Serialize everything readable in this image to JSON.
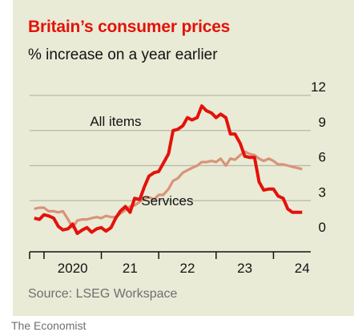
{
  "title": "Britain’s consumer prices",
  "subtitle": "% increase on a year earlier",
  "source": "Source: LSEG Workspace",
  "credit": "The Economist",
  "colors": {
    "background": "#e9ebd6",
    "all_items": "#e3120b",
    "services": "#d9937a",
    "grid": "#b7b9a6",
    "title": "#e3120b"
  },
  "chart_data": {
    "type": "line",
    "title": "Britain’s consumer prices",
    "subtitle": "% increase on a year earlier",
    "x_unit": "year",
    "xlim": [
      2019.75,
      2024.65
    ],
    "ylim": [
      0,
      12
    ],
    "yticks": [
      0,
      3,
      6,
      9,
      12
    ],
    "ytick_labels": [
      "0",
      "3",
      "6",
      "9",
      "12"
    ],
    "xticks": [
      2020,
      2021,
      2022,
      2023,
      2024
    ],
    "xtick_labels": [
      "2020",
      "21",
      "22",
      "23",
      "24"
    ],
    "grid": true,
    "y_axis_position": "right",
    "series": [
      {
        "name": "All items",
        "color": "#e3120b",
        "label_x": 2021.25,
        "label_y": 9.4,
        "x": [
          2019.83,
          2019.92,
          2020.0,
          2020.08,
          2020.17,
          2020.25,
          2020.33,
          2020.42,
          2020.5,
          2020.58,
          2020.67,
          2020.75,
          2020.83,
          2020.92,
          2021.0,
          2021.08,
          2021.17,
          2021.25,
          2021.33,
          2021.42,
          2021.5,
          2021.58,
          2021.67,
          2021.75,
          2021.83,
          2021.92,
          2022.0,
          2022.08,
          2022.17,
          2022.25,
          2022.33,
          2022.42,
          2022.5,
          2022.58,
          2022.67,
          2022.75,
          2022.83,
          2022.92,
          2023.0,
          2023.08,
          2023.17,
          2023.25,
          2023.33,
          2023.42,
          2023.5,
          2023.58,
          2023.67,
          2023.75,
          2023.83,
          2023.92,
          2024.0,
          2024.08,
          2024.17,
          2024.25,
          2024.33,
          2024.42,
          2024.5
        ],
        "values": [
          1.5,
          1.4,
          1.8,
          1.7,
          1.5,
          0.8,
          0.5,
          0.6,
          1.0,
          0.2,
          0.5,
          0.7,
          0.3,
          0.6,
          0.7,
          0.4,
          0.7,
          1.5,
          2.1,
          2.5,
          2.0,
          3.2,
          3.1,
          4.2,
          5.1,
          5.4,
          5.5,
          6.2,
          7.0,
          9.0,
          9.1,
          9.4,
          10.1,
          9.9,
          10.1,
          11.1,
          10.7,
          10.5,
          10.1,
          10.4,
          10.1,
          8.7,
          8.7,
          7.9,
          6.8,
          6.7,
          6.7,
          4.6,
          3.9,
          4.0,
          4.0,
          3.4,
          3.2,
          2.3,
          2.0,
          2.0,
          2.0
        ]
      },
      {
        "name": "Services",
        "color": "#d9937a",
        "label_x": 2022.15,
        "label_y": 2.6,
        "x": [
          2019.83,
          2019.92,
          2020.0,
          2020.08,
          2020.17,
          2020.25,
          2020.33,
          2020.42,
          2020.5,
          2020.58,
          2020.67,
          2020.75,
          2020.83,
          2020.92,
          2021.0,
          2021.08,
          2021.17,
          2021.25,
          2021.33,
          2021.42,
          2021.5,
          2021.58,
          2021.67,
          2021.75,
          2021.83,
          2021.92,
          2022.0,
          2022.08,
          2022.17,
          2022.25,
          2022.33,
          2022.42,
          2022.5,
          2022.58,
          2022.67,
          2022.75,
          2022.83,
          2022.92,
          2023.0,
          2023.08,
          2023.17,
          2023.25,
          2023.33,
          2023.42,
          2023.5,
          2023.58,
          2023.67,
          2023.75,
          2023.83,
          2023.92,
          2024.0,
          2024.08,
          2024.17,
          2024.25,
          2024.33,
          2024.42,
          2024.5
        ],
        "values": [
          2.3,
          2.4,
          2.4,
          2.1,
          2.1,
          2.0,
          2.1,
          1.4,
          0.7,
          1.3,
          1.4,
          1.4,
          1.5,
          1.6,
          1.5,
          1.7,
          1.6,
          1.6,
          1.9,
          2.2,
          2.5,
          2.6,
          2.9,
          3.2,
          3.3,
          3.1,
          3.5,
          3.5,
          4.0,
          4.7,
          4.9,
          5.4,
          5.6,
          5.8,
          6.0,
          6.3,
          6.3,
          6.4,
          6.3,
          6.6,
          6.0,
          6.6,
          6.5,
          6.9,
          7.2,
          7.0,
          6.9,
          6.6,
          6.4,
          6.6,
          6.4,
          6.1,
          6.1,
          6.0,
          5.9,
          5.8,
          5.7
        ]
      }
    ]
  }
}
